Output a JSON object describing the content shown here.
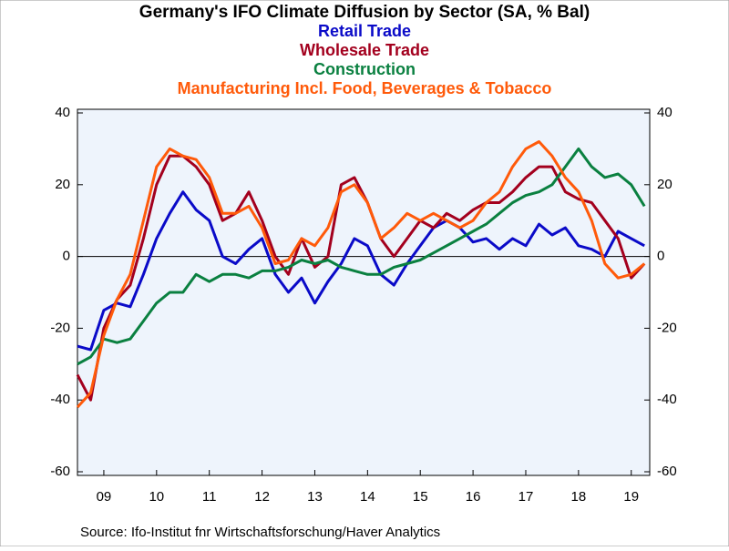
{
  "chart_data": {
    "type": "line",
    "title": "Germany's IFO Climate Diffusion by Sector (SA, % Bal)",
    "source": "Source:  Ifo-Institut fnr Wirtschaftsforschung/Haver Analytics",
    "x": [
      2009,
      2009.25,
      2009.5,
      2009.75,
      2010,
      2010.25,
      2010.5,
      2010.75,
      2011,
      2011.25,
      2011.5,
      2011.75,
      2012,
      2012.25,
      2012.5,
      2012.75,
      2013,
      2013.25,
      2013.5,
      2013.75,
      2014,
      2014.25,
      2014.5,
      2014.75,
      2015,
      2015.25,
      2015.5,
      2015.75,
      2016,
      2016.25,
      2016.5,
      2016.75,
      2017,
      2017.25,
      2017.5,
      2017.75,
      2018,
      2018.25,
      2018.5,
      2018.75,
      2019,
      2019.25,
      2019.5,
      2019.75
    ],
    "xlim": [
      2009,
      2019.85
    ],
    "xticks": [
      {
        "value": 2009.5,
        "label": "09"
      },
      {
        "value": 2010.5,
        "label": "10"
      },
      {
        "value": 2011.5,
        "label": "11"
      },
      {
        "value": 2012.5,
        "label": "12"
      },
      {
        "value": 2013.5,
        "label": "13"
      },
      {
        "value": 2014.5,
        "label": "14"
      },
      {
        "value": 2015.5,
        "label": "15"
      },
      {
        "value": 2016.5,
        "label": "16"
      },
      {
        "value": 2017.5,
        "label": "17"
      },
      {
        "value": 2018.5,
        "label": "18"
      },
      {
        "value": 2019.5,
        "label": "19"
      }
    ],
    "ylim": [
      -60,
      40
    ],
    "yticks": [
      -60,
      -40,
      -20,
      0,
      20,
      40
    ],
    "y2lim": [
      -60,
      40
    ],
    "y2ticks": [
      -60,
      -40,
      -20,
      0,
      20,
      40
    ],
    "series": [
      {
        "name": "Retail Trade",
        "color": "#0a0ac8",
        "values": [
          -25,
          -26,
          -15,
          -13,
          -14,
          -5,
          5,
          12,
          18,
          13,
          10,
          0,
          -2,
          2,
          5,
          -5,
          -10,
          -6,
          -13,
          -7,
          -2,
          5,
          3,
          -5,
          -8,
          -2,
          3,
          8,
          10,
          8,
          4,
          5,
          2,
          5,
          3,
          9,
          6,
          8,
          3,
          2,
          0,
          7,
          5,
          3
        ]
      },
      {
        "name": "Wholesale Trade",
        "color": "#a3001e",
        "values": [
          -33,
          -40,
          -20,
          -12,
          -8,
          5,
          20,
          28,
          28,
          25,
          20,
          10,
          12,
          18,
          10,
          0,
          -5,
          5,
          -3,
          0,
          20,
          22,
          15,
          5,
          0,
          5,
          10,
          8,
          12,
          10,
          13,
          15,
          15,
          18,
          22,
          25,
          25,
          18,
          16,
          15,
          10,
          5,
          -6,
          -2
        ]
      },
      {
        "name": "Construction",
        "color": "#0a8040",
        "values": [
          -30,
          -28,
          -23,
          -24,
          -23,
          -18,
          -13,
          -10,
          -10,
          -5,
          -7,
          -5,
          -5,
          -6,
          -4,
          -4,
          -3,
          -1,
          -2,
          -1,
          -3,
          -4,
          -5,
          -5,
          -3,
          -2,
          -1,
          1,
          3,
          5,
          7,
          9,
          12,
          15,
          17,
          18,
          20,
          25,
          30,
          25,
          22,
          23,
          20,
          14
        ]
      },
      {
        "name": "Manufacturing Incl. Food, Beverages & Tobacco",
        "color": "#ff5a0a",
        "values": [
          -42,
          -38,
          -22,
          -12,
          -5,
          10,
          25,
          30,
          28,
          27,
          22,
          12,
          12,
          14,
          8,
          -2,
          -1,
          5,
          3,
          8,
          18,
          20,
          15,
          5,
          8,
          12,
          10,
          12,
          10,
          8,
          10,
          15,
          18,
          25,
          30,
          32,
          28,
          22,
          18,
          10,
          -2,
          -6,
          -5,
          -2
        ]
      }
    ]
  }
}
